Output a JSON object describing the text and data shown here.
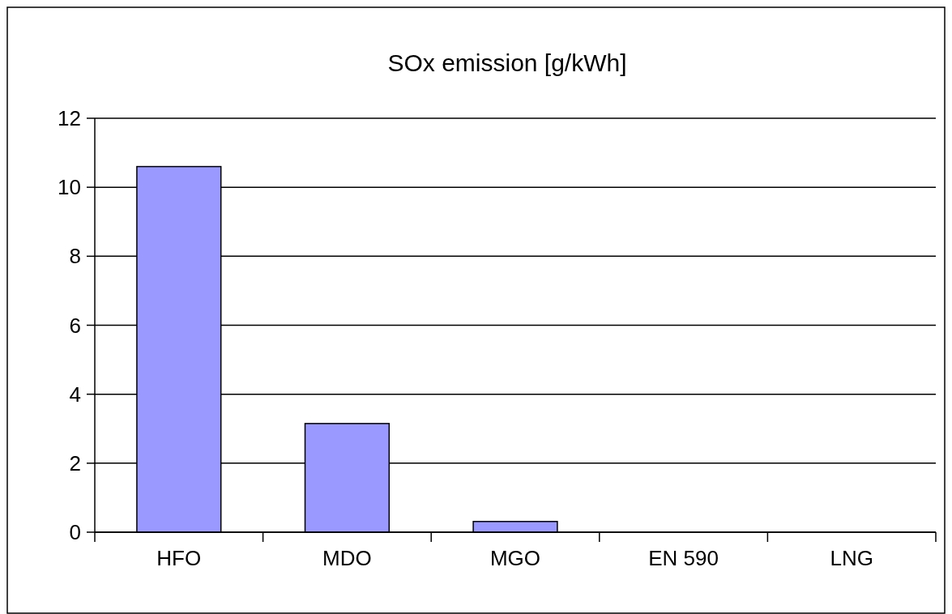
{
  "chart_data": {
    "type": "bar",
    "title": "SOx emission [g/kWh]",
    "categories": [
      "HFO",
      "MDO",
      "MGO",
      "EN 590",
      "LNG"
    ],
    "values": [
      10.6,
      3.15,
      0.31,
      0,
      0
    ],
    "color": "#9999ff",
    "ylim": [
      0,
      12
    ],
    "yticks": [
      0,
      2,
      4,
      6,
      8,
      10,
      12
    ],
    "grid": "y"
  }
}
